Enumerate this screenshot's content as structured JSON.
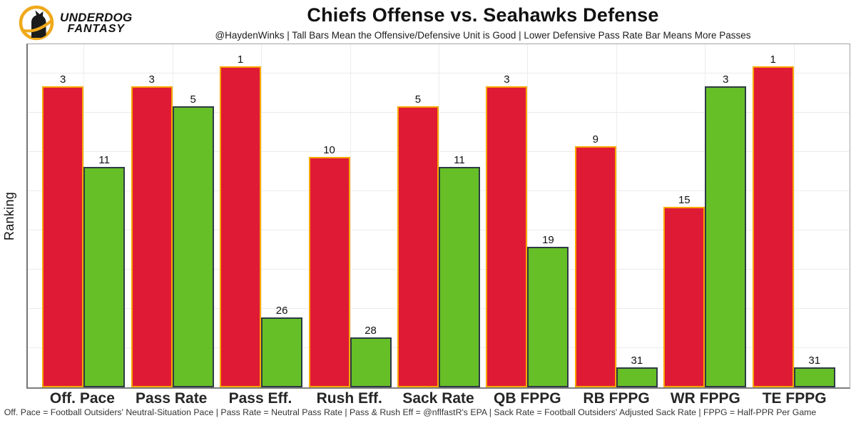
{
  "brand": {
    "line1": "UNDERDOG",
    "line2": "FANTASY"
  },
  "header": {
    "title": "Chiefs Offense vs. Seahawks Defense",
    "subtitle": "@HaydenWinks | Tall Bars Mean the Offensive/Defensive Unit is Good | Lower Defensive Pass Rate Bar Means More Passes"
  },
  "chart_data": {
    "type": "bar",
    "title": "Chiefs Offense vs. Seahawks Defense",
    "ylabel": "Ranking",
    "xlabel": "",
    "categories": [
      "Off. Pace",
      "Pass Rate",
      "Pass Eff.",
      "Rush Eff.",
      "Sack Rate",
      "QB FPPG",
      "RB FPPG",
      "WR FPPG",
      "TE FPPG"
    ],
    "series": [
      {
        "name": "Chiefs Offense",
        "fill": "#DF1A34",
        "border": "#F9A602",
        "values": [
          3,
          3,
          1,
          10,
          5,
          3,
          9,
          15,
          1
        ]
      },
      {
        "name": "Seahawks Defense",
        "fill": "#66BF27",
        "border": "#2E3A45",
        "values": [
          11,
          5,
          26,
          28,
          11,
          19,
          31,
          3,
          31
        ]
      }
    ],
    "value_semantics": "NFL ranking, 1 = best; bars drawn as (33 - rank) so rank 1 is tallest",
    "ylim": [
      0,
      34.2
    ],
    "grid": true,
    "legend_position": "none"
  },
  "footer": {
    "caption": "Off. Pace = Football Outsiders' Neutral-Situation Pace | Pass Rate = Neutral Pass Rate | Pass & Rush Eff = @nflfastR's EPA | Sack Rate = Football Outsiders' Adjusted Sack Rate | FPPG = Half-PPR Per Game"
  }
}
